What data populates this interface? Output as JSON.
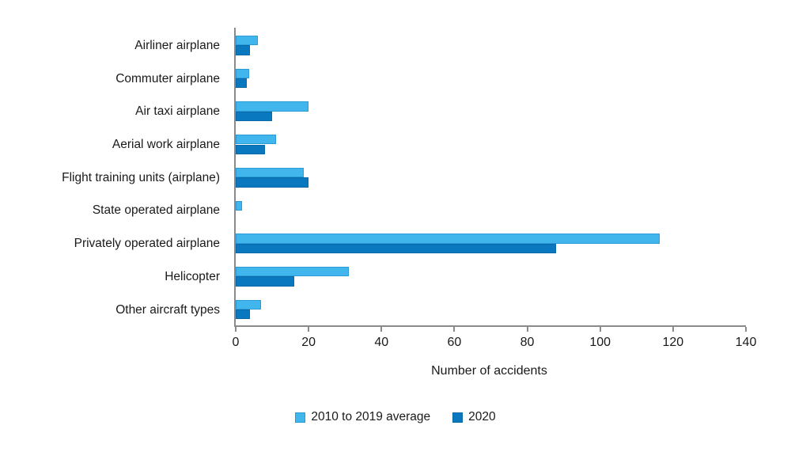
{
  "chart_data": {
    "type": "bar",
    "orientation": "horizontal",
    "title": "",
    "xlabel": "Number of accidents",
    "ylabel": "",
    "xlim": [
      0,
      140
    ],
    "xticks": [
      0,
      20,
      40,
      60,
      80,
      100,
      120,
      140
    ],
    "grid": false,
    "legend_position": "bottom-center",
    "categories": [
      "Airliner airplane",
      "Commuter airplane",
      "Air taxi airplane",
      "Aerial work airplane",
      "Flight training units (airplane)",
      "State operated airplane",
      "Privately operated airplane",
      "Helicopter",
      "Other aircraft types"
    ],
    "series": [
      {
        "name": "2010 to 2019 average",
        "color": "#41b6ec",
        "border_color": "#2b9cd8",
        "values": [
          6,
          3.6,
          20,
          11,
          18.7,
          1.8,
          116.4,
          31,
          7
        ]
      },
      {
        "name": "2020",
        "color": "#0a78be",
        "border_color": "#0a69a8",
        "values": [
          4,
          3,
          10,
          8,
          20,
          0,
          88,
          16,
          4
        ]
      }
    ],
    "axis_color": "#8a8a8a",
    "text_color": "#1a1a1a"
  }
}
